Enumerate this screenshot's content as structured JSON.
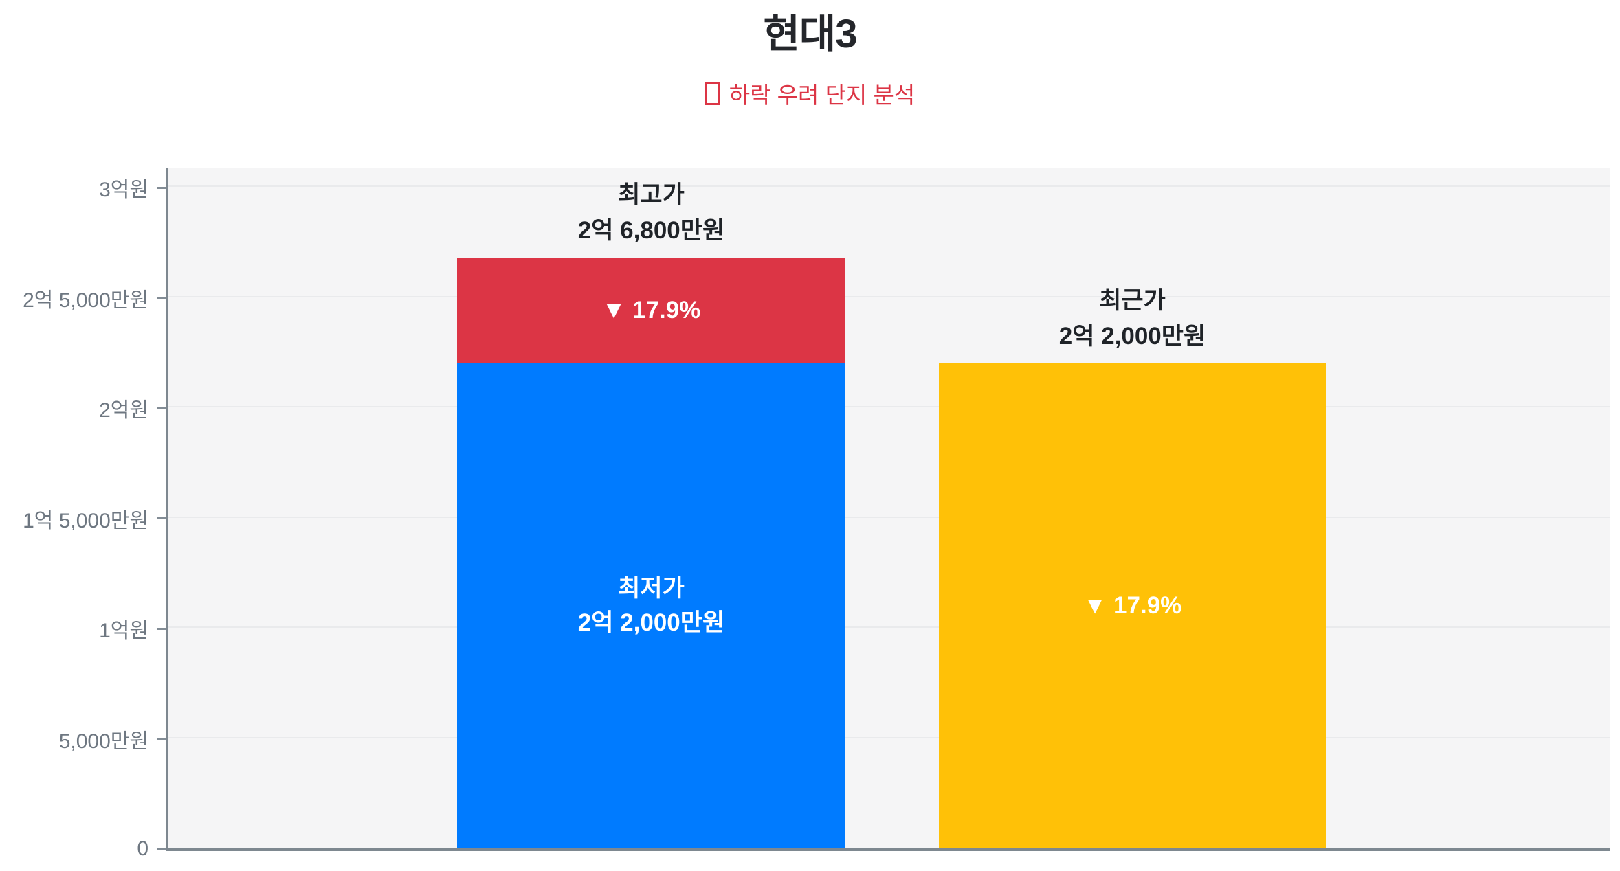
{
  "header": {
    "title": "현대3",
    "subtitle": "하락 우려 단지 분석",
    "subtitle_bullet": "□",
    "title_color": "#24262b",
    "subtitle_color": "#dc3545"
  },
  "chart_data": {
    "type": "bar",
    "title": "현대3",
    "subtitle": "하락 우려 단지 분석",
    "unit": "만원",
    "grid": true,
    "plot_background": "#f5f5f6",
    "axis_color": "#7e8890",
    "categories": [
      "최고가/최저가",
      "최근가"
    ],
    "y_axis": {
      "min": 0,
      "max": 30900,
      "ticks": [
        {
          "value": 30000,
          "label": "3억원"
        },
        {
          "value": 25000,
          "label": "2억 5,000만원"
        },
        {
          "value": 20000,
          "label": "2억원"
        },
        {
          "value": 15000,
          "label": "1억 5,000만원"
        },
        {
          "value": 10000,
          "label": "1억원"
        },
        {
          "value": 5000,
          "label": "5,000만원"
        },
        {
          "value": 0,
          "label": "0"
        }
      ]
    },
    "bars": [
      {
        "category": "최고가/최저가",
        "total_value": 26800,
        "annotation_line1": "최고가",
        "annotation_line2": "2억 6,800만원",
        "segments": [
          {
            "name": "lowest-price",
            "from": 0,
            "to": 22000,
            "color": "#007bff",
            "label_line1": "최저가",
            "label_line2": "2억 2,000만원",
            "label_color": "#ffffff"
          },
          {
            "name": "drop-range",
            "from": 22000,
            "to": 26800,
            "color": "#dc3545",
            "label_line1": "▼ 17.9%",
            "label_line2": "",
            "label_color": "#ffffff"
          }
        ]
      },
      {
        "category": "최근가",
        "total_value": 22000,
        "annotation_line1": "최근가",
        "annotation_line2": "2억 2,000만원",
        "segments": [
          {
            "name": "recent-price",
            "from": 0,
            "to": 22000,
            "color": "#ffc107",
            "label_line1": "▼ 17.9%",
            "label_line2": "",
            "label_color": "#ffffff"
          }
        ]
      }
    ],
    "drop_percent": "▼ 17.9%"
  }
}
